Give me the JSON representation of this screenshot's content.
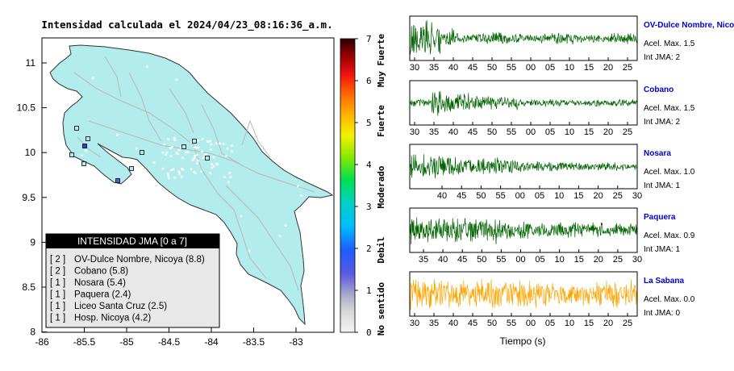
{
  "map": {
    "title": "Intensidad calculada el 2024/04/23_08:16:36_a.m.",
    "lon_ticks": [
      "-86",
      "-85.5",
      "-85",
      "-84.5",
      "-84",
      "-83.5",
      "-83"
    ],
    "lat_ticks": [
      "11",
      "10.5",
      "10",
      "9.5",
      "9",
      "8.5",
      "8"
    ],
    "legend": {
      "header": "INTENSIDAD JMA [0 a 7]",
      "entries": [
        {
          "intensity": "[ 2 ]",
          "text": "OV-Dulce Nombre, Nicoya (8.8)"
        },
        {
          "intensity": "[ 2 ]",
          "text": "Cobano (5.8)"
        },
        {
          "intensity": "[ 1 ]",
          "text": "Nosara (5.4)"
        },
        {
          "intensity": "[ 1 ]",
          "text": "Paquera (2.4)"
        },
        {
          "intensity": "[ 1 ]",
          "text": "Liceo Santa Cruz (2.5)"
        },
        {
          "intensity": "[ 1 ]",
          "text": "Hosp. Nicoya (4.2)"
        }
      ]
    },
    "colors": {
      "land": "#b3ecec",
      "border": "#333333",
      "road": "#b8b8b8",
      "ocean": "#ffffff"
    }
  },
  "colorbar": {
    "ticks": [
      "0",
      "1",
      "2",
      "3",
      "4",
      "5",
      "6",
      "7"
    ],
    "labels": [
      "No sentido",
      "Debil",
      "Moderado",
      "Fuerte",
      "Muy Fuerte"
    ]
  },
  "chart_data": {
    "type": "line",
    "xlabel": "Tiempo (s)",
    "series": [
      {
        "name": "OV-Dulce Nombre, Nicoya",
        "acel_label": "Acel. Max. 1.5",
        "jma_label": "Int JMA: 2",
        "color": "#006400",
        "x_ticks": [
          "30",
          "35",
          "40",
          "45",
          "50",
          "55",
          "00",
          "05",
          "10",
          "15",
          "20",
          "25"
        ],
        "amplitude": 1.5
      },
      {
        "name": "Cobano",
        "acel_label": "Acel. Max. 1.5",
        "jma_label": "Int JMA: 2",
        "color": "#006400",
        "x_ticks": [
          "30",
          "35",
          "40",
          "45",
          "50",
          "55",
          "00",
          "05",
          "10",
          "15",
          "20",
          "25"
        ],
        "amplitude": 1.5
      },
      {
        "name": "Nosara",
        "acel_label": "Acel. Max. 1.0",
        "jma_label": "Int JMA: 1",
        "color": "#006400",
        "x_ticks": [
          "40",
          "45",
          "50",
          "55",
          "00",
          "05",
          "10",
          "15",
          "20",
          "25",
          "30"
        ],
        "amplitude": 1.0
      },
      {
        "name": "Paquera",
        "acel_label": "Acel. Max. 0.9",
        "jma_label": "Int JMA: 1",
        "color": "#006400",
        "x_ticks": [
          "35",
          "40",
          "45",
          "50",
          "55",
          "00",
          "05",
          "10",
          "15",
          "20",
          "25",
          "30"
        ],
        "amplitude": 0.9
      },
      {
        "name": "La Sabana",
        "acel_label": "Acel. Max. 0.0",
        "jma_label": "Int JMA: 0",
        "color": "#ffa500",
        "x_ticks": [
          "30",
          "35",
          "40",
          "45",
          "50",
          "55",
          "00",
          "05",
          "10",
          "15",
          "20",
          "25"
        ],
        "amplitude": 0.0
      }
    ]
  }
}
